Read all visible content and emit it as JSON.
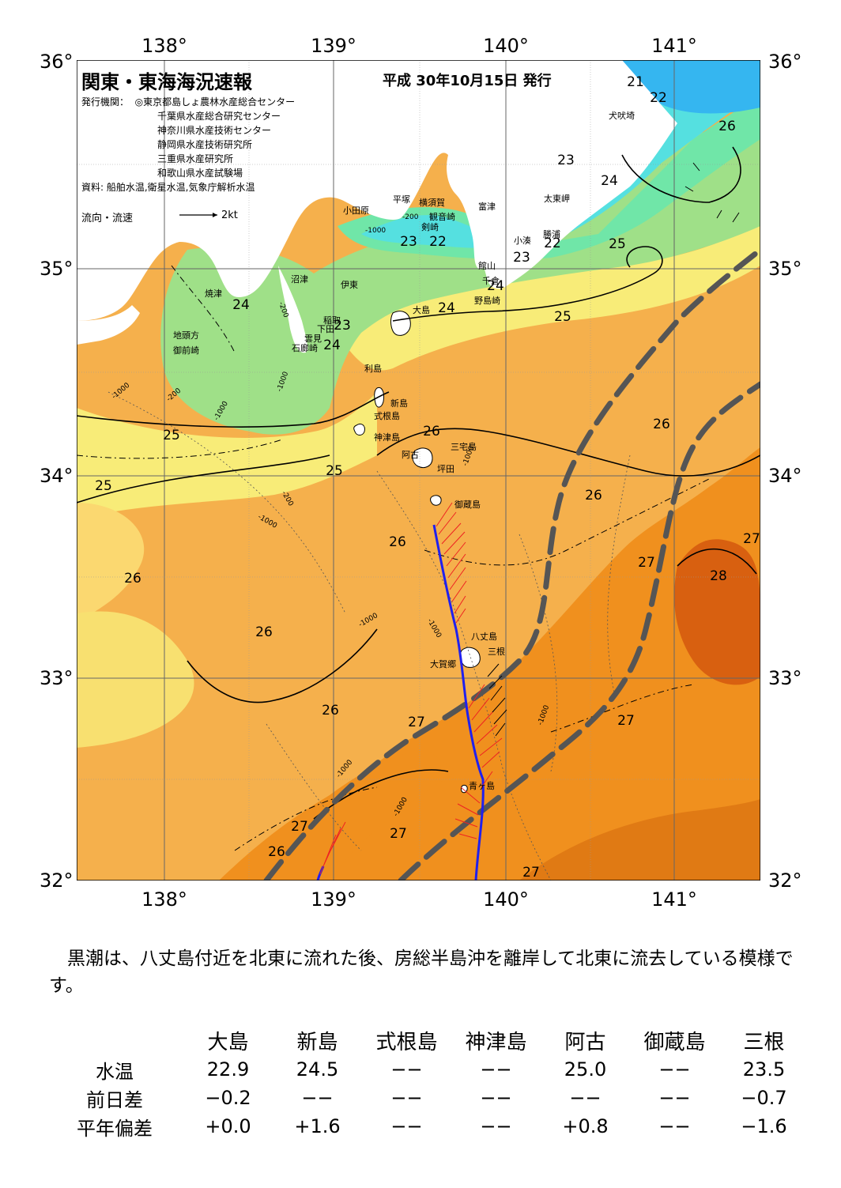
{
  "header": {
    "title": "関東・東海海況速報",
    "date": "平成 30年10月15日 発行",
    "publisher_label": "発行機関：",
    "publishers": [
      "◎東京都島しょ農林水産総合センター",
      "千葉県水産総合研究センター",
      "神奈川県水産技術センター",
      "静岡県水産技術研究所",
      "三重県水産研究所",
      "和歌山県水産試験場"
    ],
    "source": "資料: 船舶水温,衛星水温,気象庁解析水温",
    "flow_label": "流向・流速",
    "flow_scale": "2kt"
  },
  "axes": {
    "lon_labels": [
      "138°",
      "139°",
      "140°",
      "141°"
    ],
    "lat_labels": [
      "36°",
      "35°",
      "34°",
      "33°",
      "32°"
    ]
  },
  "map": {
    "isotherm_labels": [
      "21",
      "22",
      "26",
      "23",
      "24",
      "22",
      "25",
      "23",
      "22",
      "23",
      "24",
      "24",
      "24",
      "23",
      "24",
      "25",
      "26",
      "25",
      "26",
      "25",
      "25",
      "26",
      "27",
      "26",
      "28",
      "27",
      "26",
      "26",
      "27",
      "27",
      "26",
      "27",
      "26",
      "27",
      "27"
    ],
    "place_labels": [
      "犬吠埼",
      "太東岬",
      "勝浦",
      "小湊",
      "富津",
      "館山",
      "千倉",
      "野島崎",
      "横須賀",
      "観音崎",
      "剣崎",
      "平塚",
      "小田原",
      "沼津",
      "伊東",
      "大島",
      "稲取",
      "下田",
      "雲見",
      "石廊崎",
      "焼津",
      "地頭方",
      "御前崎",
      "利島",
      "新島",
      "式根島",
      "神津島",
      "三宅島",
      "阿古",
      "坪田",
      "御蔵島",
      "八丈島",
      "三根",
      "大賀郷",
      "青ヶ島"
    ],
    "depth_labels": [
      "-200",
      "-1000"
    ]
  },
  "summary": "黒潮は、八丈島付近を北東に流れた後、房総半島沖を離岸して北東に流去している模様です。",
  "table": {
    "columns": [
      "大島",
      "新島",
      "式根島",
      "神津島",
      "阿古",
      "御蔵島",
      "三根"
    ],
    "rows": [
      {
        "label": "水温",
        "values": [
          "22.9",
          "24.5",
          "−−",
          "−−",
          "25.0",
          "−−",
          "23.5"
        ]
      },
      {
        "label": "前日差",
        "values": [
          "−0.2",
          "−−",
          "−−",
          "−−",
          "−−",
          "−−",
          "−0.7"
        ]
      },
      {
        "label": "平年偏差",
        "values": [
          "+0.0",
          "+1.6",
          "−−",
          "−−",
          "+0.8",
          "−−",
          "−1.6"
        ]
      }
    ]
  },
  "colors": {
    "t21": "#35b6f0",
    "t22": "#55e0e0",
    "t23": "#70e6a8",
    "t24": "#9fe088",
    "t25": "#f8ec78",
    "t26": "#f5b04c",
    "t27": "#f0901e",
    "t28": "#d86010",
    "kuroshio": "#555555",
    "track": "#2020ee",
    "vectors": "#ee2222"
  }
}
